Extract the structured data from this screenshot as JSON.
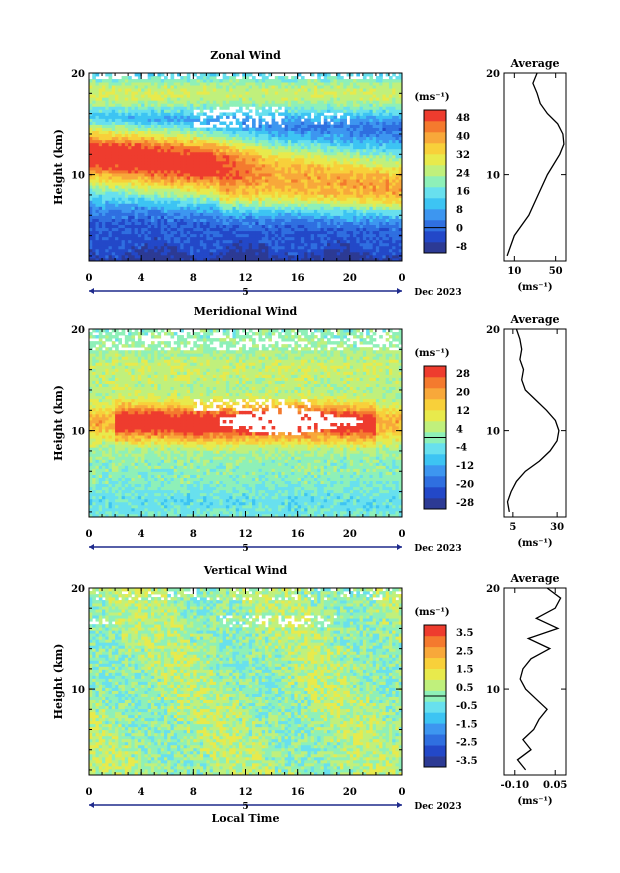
{
  "figure": {
    "xlabel": "Local Time",
    "date_label": "Dec 2023",
    "day_label": "5",
    "avg_title": "Average",
    "unit_label": "(ms⁻¹)"
  },
  "chart_data": [
    {
      "type": "heatmap",
      "title": "Zonal Wind",
      "ylabel": "Height (km)",
      "x_ticks": [
        "0",
        "4",
        "8",
        "12",
        "16",
        "20",
        "0"
      ],
      "y_ticks": [
        "20",
        "10"
      ],
      "xlim": [
        0,
        24
      ],
      "ylim": [
        1.5,
        20
      ],
      "colorbar": {
        "ticks": [
          "48",
          "40",
          "32",
          "24",
          "16",
          "8",
          "0",
          "-8"
        ],
        "range": [
          -8,
          52
        ],
        "colors": [
          "#2c3a94",
          "#2348c8",
          "#2f6fe0",
          "#3d96f0",
          "#3dc4f3",
          "#68e0ee",
          "#8ef0b8",
          "#c0f07c",
          "#e8ea4c",
          "#f8d03a",
          "#f8a83a",
          "#f47a2e",
          "#ee3c2e"
        ]
      },
      "profile": {
        "title": "Average",
        "x_ticks": [
          "10",
          "50"
        ],
        "y_ticks": [
          "20",
          "10"
        ],
        "xlim": [
          0,
          60
        ],
        "heights": [
          2,
          4,
          6,
          8,
          10,
          11,
          12,
          13,
          14,
          15,
          16,
          17,
          18,
          19,
          20
        ],
        "values": [
          3,
          10,
          24,
          33,
          42,
          48,
          54,
          58,
          57,
          52,
          42,
          35,
          32,
          28,
          32
        ]
      }
    },
    {
      "type": "heatmap",
      "title": "Meridional Wind",
      "ylabel": "Height (km)",
      "x_ticks": [
        "0",
        "4",
        "8",
        "12",
        "16",
        "20",
        "0"
      ],
      "y_ticks": [
        "20",
        "10"
      ],
      "xlim": [
        0,
        24
      ],
      "ylim": [
        1.5,
        20
      ],
      "colorbar": {
        "ticks": [
          "28",
          "20",
          "12",
          "4",
          "-4",
          "-12",
          "-20",
          "-28"
        ],
        "range": [
          -32,
          32
        ],
        "colors": [
          "#2c3a94",
          "#2348c8",
          "#2f6fe0",
          "#3d96f0",
          "#3dc4f3",
          "#68e0ee",
          "#8ef0b8",
          "#c0f07c",
          "#e8ea4c",
          "#f8d03a",
          "#f8a83a",
          "#f47a2e",
          "#ee3c2e"
        ]
      },
      "profile": {
        "title": "Average",
        "x_ticks": [
          "5",
          "30"
        ],
        "y_ticks": [
          "20",
          "10"
        ],
        "xlim": [
          0,
          35
        ],
        "heights": [
          2,
          3,
          4,
          5,
          6,
          7,
          8,
          9,
          10,
          11,
          12,
          13,
          14,
          15,
          16,
          17,
          18,
          19,
          20
        ],
        "values": [
          3,
          2,
          4,
          7,
          12,
          20,
          26,
          30,
          31,
          29,
          24,
          18,
          12,
          10,
          11,
          9,
          10,
          9,
          7
        ]
      }
    },
    {
      "type": "heatmap",
      "title": "Vertical Wind",
      "ylabel": "Height (km)",
      "x_ticks": [
        "0",
        "4",
        "8",
        "12",
        "16",
        "20",
        "0"
      ],
      "y_ticks": [
        "20",
        "10"
      ],
      "xlim": [
        0,
        24
      ],
      "ylim": [
        1.5,
        20
      ],
      "colorbar": {
        "ticks": [
          "3.5",
          "2.5",
          "1.5",
          "0.5",
          "-0.5",
          "-1.5",
          "-2.5",
          "-3.5"
        ],
        "range": [
          -4,
          4
        ],
        "colors": [
          "#2c3a94",
          "#2348c8",
          "#2f6fe0",
          "#3d96f0",
          "#3dc4f3",
          "#68e0ee",
          "#8ef0b8",
          "#c0f07c",
          "#e8ea4c",
          "#f8d03a",
          "#f8a83a",
          "#f47a2e",
          "#ee3c2e"
        ]
      },
      "profile": {
        "title": "Average",
        "x_ticks": [
          "-0.10",
          "0.05"
        ],
        "y_ticks": [
          "20",
          "10"
        ],
        "xlim": [
          -0.14,
          0.09
        ],
        "heights": [
          2,
          3,
          4,
          5,
          6,
          7,
          8,
          9,
          10,
          11,
          12,
          13,
          14,
          15,
          16,
          17,
          18,
          19,
          20
        ],
        "values": [
          -0.06,
          -0.09,
          -0.04,
          -0.07,
          -0.03,
          -0.01,
          0.02,
          -0.02,
          -0.06,
          -0.08,
          -0.07,
          -0.04,
          0.03,
          -0.05,
          0.06,
          -0.02,
          0.05,
          0.07,
          0.02
        ]
      }
    }
  ]
}
